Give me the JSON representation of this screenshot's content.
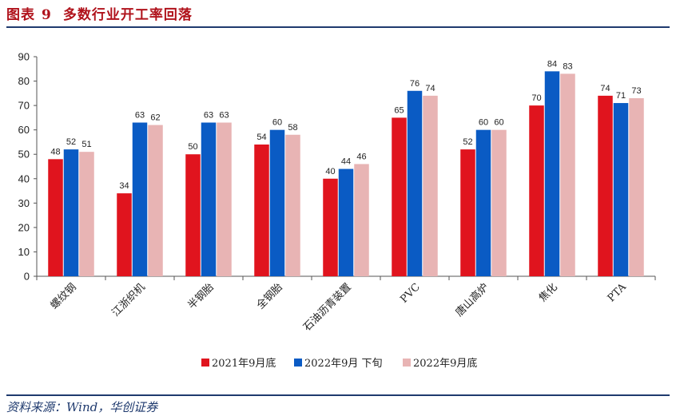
{
  "header": {
    "prefix": "图表",
    "number": "9",
    "title": "多数行业开工率回落"
  },
  "source": "资料来源：Wind，华创证券",
  "colors": {
    "series": [
      "#e0141e",
      "#0a5bc4",
      "#e8b4b4"
    ],
    "rule": "#1f3a6e",
    "title": "#b0121b"
  },
  "chart_data": {
    "type": "bar",
    "title": "多数行业开工率回落",
    "categories": [
      "螺纹钢",
      "江浙织机",
      "半钢胎",
      "全钢胎",
      "石油沥青装置",
      "PVC",
      "唐山高炉",
      "焦化",
      "PTA"
    ],
    "series": [
      {
        "name": "2021年9月底",
        "values": [
          48,
          34,
          50,
          54,
          40,
          65,
          52,
          70,
          74
        ]
      },
      {
        "name": "2022年9月 下旬",
        "values": [
          52,
          63,
          63,
          60,
          44,
          76,
          60,
          84,
          71
        ]
      },
      {
        "name": "2022年9月底",
        "values": [
          51,
          62,
          63,
          58,
          46,
          74,
          60,
          83,
          73
        ]
      }
    ],
    "ylim": [
      0,
      90
    ],
    "yticks": [
      0,
      10,
      20,
      30,
      40,
      50,
      60,
      70,
      80,
      90
    ],
    "legend_position": "bottom",
    "grid": false
  }
}
